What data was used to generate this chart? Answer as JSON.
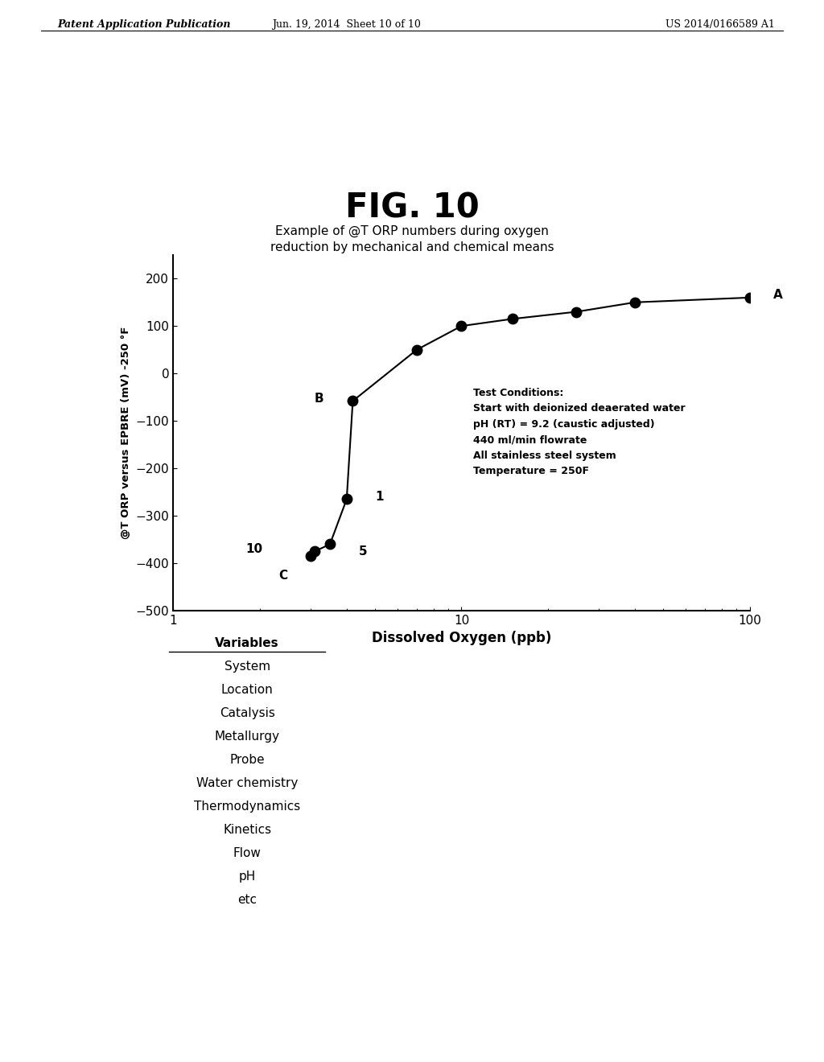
{
  "fig_title": "FIG. 10",
  "subtitle_line1": "Example of @T ORP numbers during oxygen",
  "subtitle_line2": "reduction by mechanical and chemical means",
  "xlabel": "Dissolved Oxygen (ppb)",
  "ylabel": "@T ORP versus EPBRE (mV) -250 °F",
  "header_left": "Patent Application Publication",
  "header_center": "Jun. 19, 2014  Sheet 10 of 10",
  "header_right": "US 2014/0166589 A1",
  "xlim_log": [
    1,
    100
  ],
  "ylim": [
    -500,
    250
  ],
  "yticks": [
    -500,
    -400,
    -300,
    -200,
    -100,
    0,
    100,
    200
  ],
  "data_x": [
    3.0,
    3.1,
    3.5,
    4.0,
    4.2,
    7.0,
    10.0,
    15.0,
    25.0,
    40.0,
    100.0
  ],
  "data_y": [
    -385,
    -375,
    -360,
    -265,
    -58,
    50,
    100,
    115,
    130,
    150,
    160
  ],
  "point_labels": [
    "C",
    "10",
    "5",
    "1",
    "B",
    "",
    "",
    "",
    "",
    "",
    "A"
  ],
  "test_conditions": "Test Conditions:\nStart with deionized deaerated water\npH (RT) = 9.2 (caustic adjusted)\n440 ml/min flowrate\nAll stainless steel system\nTemperature = 250F",
  "test_conditions_x": 11.0,
  "test_conditions_y": -30,
  "variables_list": [
    "Variables",
    "System",
    "Location",
    "Catalysis",
    "Metallurgy",
    "Probe",
    "Water chemistry",
    "Thermodynamics",
    "Kinetics",
    "Flow",
    "pH",
    "etc"
  ],
  "background_color": "#ffffff",
  "line_color": "#000000",
  "marker_color": "#000000"
}
